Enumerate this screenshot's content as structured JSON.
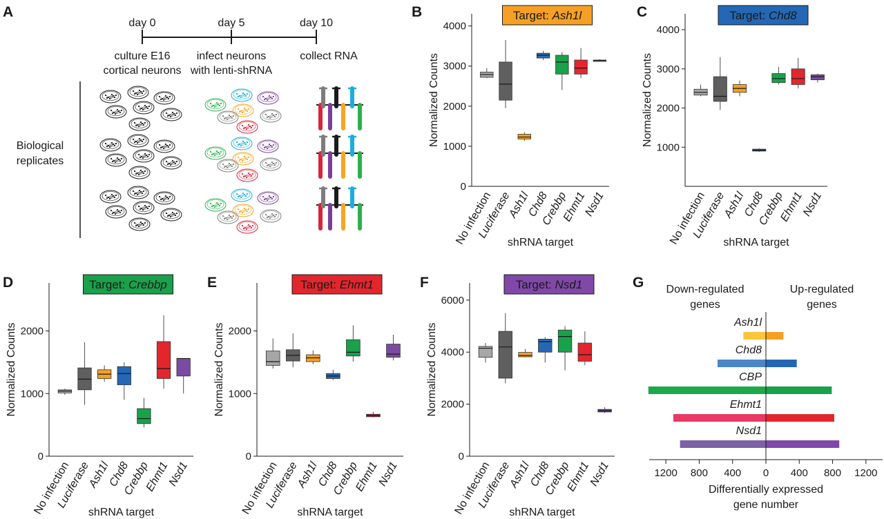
{
  "panel_a": {
    "label": "A",
    "timeline": [
      {
        "day": "day 0",
        "lines": [
          "culture E16",
          "cortical neurons"
        ]
      },
      {
        "day": "day 5",
        "lines": [
          "infect neurons",
          "with lenti-shRNA"
        ]
      },
      {
        "day": "day 10",
        "lines": [
          "collect RNA"
        ]
      }
    ],
    "replicates_label": [
      "Biological",
      "replicates"
    ],
    "colors": {
      "gray": "#7d7d7d",
      "black": "#1a1a1a",
      "blue": "#1aaee0",
      "purple": "#7b3f9a",
      "green": "#2ab14b",
      "orange": "#f5a623",
      "red": "#d8243a"
    }
  },
  "chart_data": [
    {
      "panel": "B",
      "type": "box",
      "title_prefix": "Target: ",
      "title_target": "Ash1l",
      "title_color": "#f5a025",
      "xlabel": "shRNA target",
      "ylabel": "Normalized Counts",
      "ylim": [
        0,
        4200
      ],
      "yticks": [
        0,
        1000,
        2000,
        3000,
        4000
      ],
      "categories": [
        "No infection",
        "Luciferase",
        "Ash1l",
        "Chd8",
        "Crebbp",
        "Ehmt1",
        "Nsd1"
      ],
      "italic": [
        false,
        true,
        true,
        true,
        true,
        true,
        true
      ],
      "series": [
        {
          "min": 2700,
          "q1": 2720,
          "median": 2790,
          "q3": 2850,
          "max": 2950,
          "color": "#a6a6a6"
        },
        {
          "min": 1950,
          "q1": 2150,
          "median": 2550,
          "q3": 3100,
          "max": 3650,
          "color": "#5f5f5f"
        },
        {
          "min": 1130,
          "q1": 1180,
          "median": 1230,
          "q3": 1300,
          "max": 1350,
          "color": "#f5a025"
        },
        {
          "min": 3150,
          "q1": 3200,
          "median": 3270,
          "q3": 3320,
          "max": 3380,
          "color": "#1f6fba"
        },
        {
          "min": 2400,
          "q1": 2800,
          "median": 3100,
          "q3": 3270,
          "max": 3350,
          "color": "#19a14b"
        },
        {
          "min": 2700,
          "q1": 2800,
          "median": 2950,
          "q3": 3150,
          "max": 3450,
          "color": "#e3262d"
        },
        {
          "min": 3110,
          "q1": 3120,
          "median": 3140,
          "q3": 3150,
          "max": 3170,
          "color": "#7b4aa3"
        }
      ]
    },
    {
      "panel": "C",
      "type": "box",
      "title_prefix": "Target: ",
      "title_target": "Chd8",
      "title_color": "#2467b5",
      "xlabel": "shRNA target",
      "ylabel": "Normalized Counts",
      "ylim": [
        0,
        4300
      ],
      "yticks": [
        1000,
        2000,
        3000,
        4000
      ],
      "categories": [
        "No infection",
        "Luciferase",
        "Ash1l",
        "Chd8",
        "Crebbp",
        "Ehmt1",
        "Nsd1"
      ],
      "italic": [
        false,
        true,
        true,
        true,
        true,
        true,
        true
      ],
      "series": [
        {
          "min": 2300,
          "q1": 2330,
          "median": 2400,
          "q3": 2480,
          "max": 2600,
          "color": "#a6a6a6"
        },
        {
          "min": 1950,
          "q1": 2170,
          "median": 2300,
          "q3": 2800,
          "max": 3300,
          "color": "#5f5f5f"
        },
        {
          "min": 2300,
          "q1": 2400,
          "median": 2500,
          "q3": 2600,
          "max": 2700,
          "color": "#f5a025"
        },
        {
          "min": 880,
          "q1": 900,
          "median": 920,
          "q3": 950,
          "max": 970,
          "color": "#1f4f8a"
        },
        {
          "min": 2600,
          "q1": 2650,
          "median": 2750,
          "q3": 2880,
          "max": 3050,
          "color": "#19a14b"
        },
        {
          "min": 2500,
          "q1": 2600,
          "median": 2750,
          "q3": 3000,
          "max": 3280,
          "color": "#e3262d"
        },
        {
          "min": 2650,
          "q1": 2720,
          "median": 2800,
          "q3": 2850,
          "max": 2880,
          "color": "#7b4aa3"
        }
      ]
    },
    {
      "panel": "D",
      "type": "box",
      "title_prefix": "Target: ",
      "title_target": "Crebbp",
      "title_color": "#19a14b",
      "xlabel": "shRNA target",
      "ylabel": "Normalized Counts",
      "ylim": [
        0,
        2700
      ],
      "yticks": [
        0,
        1000,
        2000
      ],
      "categories": [
        "No infection",
        "Luciferase",
        "Ash1l",
        "Chd8",
        "Crebbp",
        "Ehmt1",
        "Nsd1"
      ],
      "italic": [
        false,
        true,
        true,
        true,
        true,
        true,
        true
      ],
      "series": [
        {
          "min": 980,
          "q1": 1010,
          "median": 1040,
          "q3": 1060,
          "max": 1080,
          "color": "#a6a6a6"
        },
        {
          "min": 820,
          "q1": 1060,
          "median": 1230,
          "q3": 1410,
          "max": 1820,
          "color": "#5f5f5f"
        },
        {
          "min": 1190,
          "q1": 1240,
          "median": 1310,
          "q3": 1380,
          "max": 1450,
          "color": "#f5a025"
        },
        {
          "min": 900,
          "q1": 1140,
          "median": 1320,
          "q3": 1430,
          "max": 1500,
          "color": "#2467b5"
        },
        {
          "min": 460,
          "q1": 520,
          "median": 600,
          "q3": 760,
          "max": 930,
          "color": "#19a14b"
        },
        {
          "min": 1080,
          "q1": 1240,
          "median": 1400,
          "q3": 1830,
          "max": 2250,
          "color": "#e3262d"
        },
        {
          "min": 1000,
          "q1": 1280,
          "median": 1560,
          "q3": 1560,
          "max": 1560,
          "color": "#7b4aa3"
        }
      ]
    },
    {
      "panel": "E",
      "type": "box",
      "title_prefix": "Target: ",
      "title_target": "Ehmt1",
      "title_color": "#e3262d",
      "xlabel": "shRNA target",
      "ylabel": "Normalized Counts",
      "ylim": [
        0,
        2700
      ],
      "yticks": [
        0,
        1000,
        2000
      ],
      "categories": [
        "No infection",
        "Luciferase",
        "Ash1l",
        "Chd8",
        "Crebbp",
        "Ehmt1",
        "Nsd1"
      ],
      "italic": [
        false,
        true,
        true,
        true,
        true,
        true,
        true
      ],
      "series": [
        {
          "min": 1400,
          "q1": 1450,
          "median": 1510,
          "q3": 1680,
          "max": 1880,
          "color": "#a6a6a6"
        },
        {
          "min": 1420,
          "q1": 1520,
          "median": 1610,
          "q3": 1700,
          "max": 1960,
          "color": "#5f5f5f"
        },
        {
          "min": 1470,
          "q1": 1510,
          "median": 1570,
          "q3": 1620,
          "max": 1690,
          "color": "#f5a025"
        },
        {
          "min": 1220,
          "q1": 1240,
          "median": 1280,
          "q3": 1320,
          "max": 1380,
          "color": "#2467b5"
        },
        {
          "min": 1510,
          "q1": 1600,
          "median": 1660,
          "q3": 1860,
          "max": 2090,
          "color": "#19a14b"
        },
        {
          "min": 620,
          "q1": 630,
          "median": 650,
          "q3": 670,
          "max": 710,
          "color": "#c41f27"
        },
        {
          "min": 1530,
          "q1": 1580,
          "median": 1630,
          "q3": 1790,
          "max": 1940,
          "color": "#7b4aa3"
        }
      ]
    },
    {
      "panel": "F",
      "type": "box",
      "title_prefix": "Target: ",
      "title_target": "Nsd1",
      "title_color": "#8048a8",
      "xlabel": "shRNA target",
      "ylabel": "Normalized Counts",
      "ylim": [
        0,
        6500
      ],
      "yticks": [
        0,
        2000,
        4000,
        6000
      ],
      "categories": [
        "No infection",
        "Luciferase",
        "Ash1l",
        "Chd8",
        "Crebbp",
        "Ehmt1",
        "Nsd1"
      ],
      "italic": [
        false,
        true,
        true,
        true,
        true,
        true,
        true
      ],
      "series": [
        {
          "min": 3600,
          "q1": 3800,
          "median": 4150,
          "q3": 4220,
          "max": 4350,
          "color": "#a6a6a6"
        },
        {
          "min": 2800,
          "q1": 3000,
          "median": 4200,
          "q3": 4800,
          "max": 5500,
          "color": "#5f5f5f"
        },
        {
          "min": 3800,
          "q1": 3820,
          "median": 3870,
          "q3": 3990,
          "max": 4120,
          "color": "#f5a025"
        },
        {
          "min": 3600,
          "q1": 4000,
          "median": 4400,
          "q3": 4500,
          "max": 4580,
          "color": "#2467b5"
        },
        {
          "min": 3300,
          "q1": 4000,
          "median": 4600,
          "q3": 4850,
          "max": 5000,
          "color": "#19a14b"
        },
        {
          "min": 3500,
          "q1": 3650,
          "median": 3900,
          "q3": 4350,
          "max": 4800,
          "color": "#e3262d"
        },
        {
          "min": 1660,
          "q1": 1700,
          "median": 1750,
          "q3": 1800,
          "max": 1880,
          "color": "#6c3a94"
        }
      ]
    },
    {
      "panel": "G",
      "type": "bar",
      "title_left": [
        "Down-regulated",
        "genes"
      ],
      "title_right": [
        "Up-regulated",
        "genes"
      ],
      "xlabel": [
        "Differentially expressed",
        "gene number"
      ],
      "xlim": [
        -1400,
        1400
      ],
      "xticks": [
        "1200",
        "800",
        "400",
        "0",
        "400",
        "800",
        "1200"
      ],
      "categories": [
        "Ash1l",
        "Chd8",
        "CBP",
        "Ehmt1",
        "Nsd1"
      ],
      "down": [
        270,
        580,
        1410,
        1110,
        1030
      ],
      "up": [
        210,
        370,
        790,
        820,
        880
      ],
      "down_colors": [
        "#fbc53a",
        "#4a86c5",
        "#1ea84e",
        "#e83a62",
        "#7c61a5"
      ],
      "up_colors": [
        "#f5a025",
        "#2467b5",
        "#19a14b",
        "#e3262d",
        "#8048a8"
      ]
    }
  ]
}
